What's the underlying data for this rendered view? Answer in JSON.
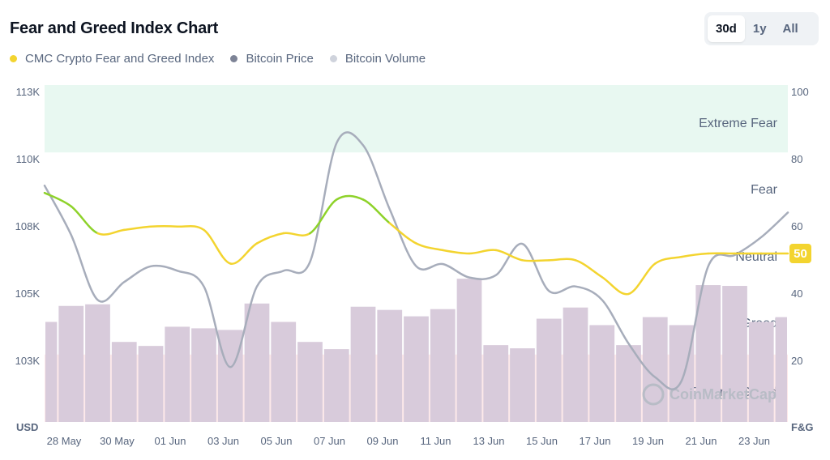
{
  "header": {
    "title": "Fear and Greed Index Chart",
    "ranges": [
      "30d",
      "1y",
      "All"
    ],
    "active_range": "30d"
  },
  "legend": [
    {
      "label": "CMC Crypto Fear and Greed Index",
      "color": "#f3d42f"
    },
    {
      "label": "Bitcoin Price",
      "color": "#7d8396"
    },
    {
      "label": "Bitcoin Volume",
      "color": "#cfd3dc"
    }
  ],
  "watermark": "CoinMarketCap",
  "current_value_badge": "50",
  "chart_data": {
    "type": "line",
    "x": [
      "28 May",
      "29 May",
      "30 May",
      "31 May",
      "01 Jun",
      "02 Jun",
      "03 Jun",
      "04 Jun",
      "05 Jun",
      "06 Jun",
      "07 Jun",
      "08 Jun",
      "09 Jun",
      "10 Jun",
      "11 Jun",
      "12 Jun",
      "13 Jun",
      "14 Jun",
      "15 Jun",
      "16 Jun",
      "17 Jun",
      "18 Jun",
      "19 Jun",
      "20 Jun",
      "21 Jun",
      "22 Jun",
      "23 Jun",
      "24 Jun",
      "25 Jun"
    ],
    "x_tick_labels": [
      "28 May",
      "30 May",
      "01 Jun",
      "03 Jun",
      "05 Jun",
      "07 Jun",
      "09 Jun",
      "11 Jun",
      "13 Jun",
      "15 Jun",
      "17 Jun",
      "19 Jun",
      "21 Jun",
      "23 Jun"
    ],
    "series": [
      {
        "name": "CMC Crypto Fear and Greed Index",
        "axis": "right",
        "values": [
          68,
          64,
          56,
          57,
          58,
          58,
          57,
          47,
          53,
          56,
          56,
          66,
          66,
          59,
          53,
          51,
          50,
          51,
          48,
          48,
          48,
          43,
          38,
          47,
          49,
          50,
          50,
          50,
          50
        ]
      },
      {
        "name": "Bitcoin Price",
        "axis": "left",
        "values": [
          109200,
          107600,
          104800,
          105500,
          106200,
          106000,
          105300,
          102800,
          105300,
          106000,
          106400,
          110700,
          110600,
          108500,
          106200,
          106300,
          105700,
          105800,
          107200,
          105100,
          105300,
          104800,
          103500,
          102500,
          102400,
          106200,
          106700,
          107500,
          108400
        ]
      },
      {
        "name": "Bitcoin Volume",
        "axis": "none",
        "values": [
          12.5,
          14.5,
          14.7,
          10.0,
          9.5,
          11.9,
          11.7,
          11.5,
          14.8,
          12.5,
          10.0,
          9.1,
          14.4,
          14.0,
          13.2,
          14.1,
          17.9,
          9.6,
          9.2,
          12.9,
          14.3,
          12.1,
          9.6,
          13.1,
          12.1,
          17.1,
          17.0,
          12.5,
          13.1
        ]
      }
    ],
    "y_left": {
      "label": "USD",
      "ticks": [
        "113K",
        "110K",
        "108K",
        "105K",
        "103K"
      ],
      "tick_values": [
        113000,
        110000,
        108000,
        105000,
        103000
      ]
    },
    "y_right": {
      "label": "F&G",
      "ticks": [
        "100",
        "80",
        "60",
        "40",
        "20"
      ],
      "range": [
        0,
        100
      ]
    },
    "zones": [
      {
        "name": "Extreme Greed",
        "from": 80,
        "to": 100,
        "color": "#e8f8f1"
      },
      {
        "name": "Greed",
        "from": 60,
        "to": 80
      },
      {
        "name": "Neutral",
        "from": 40,
        "to": 60
      },
      {
        "name": "Fear",
        "from": 20,
        "to": 40
      },
      {
        "name": "Extreme Fear",
        "from": 0,
        "to": 20,
        "color": "#fde9ea"
      }
    ],
    "colors": {
      "fear_greed_neutral": "#f3d42f",
      "fear_greed_greed": "#8ed22a",
      "fear_greed_fear": "#e99713",
      "price": "#a7adbb",
      "volume": "#d8cbdb"
    }
  }
}
